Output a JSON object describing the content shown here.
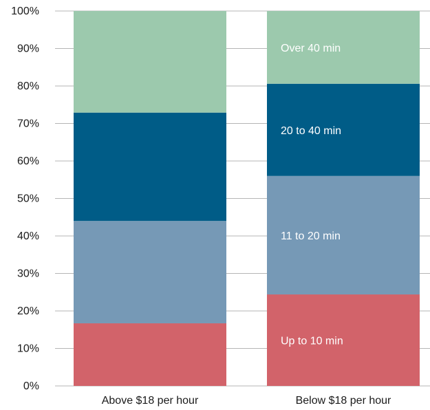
{
  "chart_data": {
    "type": "bar",
    "stacked": true,
    "categories": [
      "Above $18 per hour",
      "Below $18 per hour"
    ],
    "series": [
      {
        "name": "Up to 10 min",
        "color": "#d2636a",
        "values": [
          16.7,
          24.4
        ]
      },
      {
        "name": "11 to 20 min",
        "color": "#7699b6",
        "values": [
          27.3,
          31.6
        ]
      },
      {
        "name": "20 to 40 min",
        "color": "#005c87",
        "values": [
          28.9,
          24.6
        ]
      },
      {
        "name": "Over 40 min",
        "color": "#9cc9ad",
        "values": [
          27.1,
          19.4
        ]
      }
    ],
    "ylim": [
      0,
      100
    ],
    "yticks": [
      "0%",
      "10%",
      "20%",
      "30%",
      "40%",
      "50%",
      "60%",
      "70%",
      "80%",
      "90%",
      "100%"
    ],
    "grid": true,
    "series_labels_on_bar": 1,
    "title": "",
    "xlabel": "",
    "ylabel": ""
  }
}
